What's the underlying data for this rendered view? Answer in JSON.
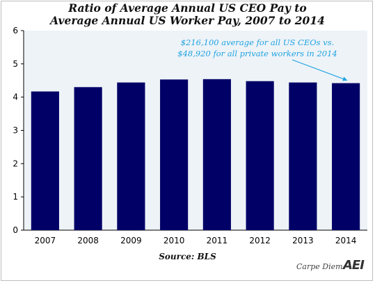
{
  "title_line1": "Ratio of Average Annual US CEO Pay to",
  "title_line2": "Average Annual US Worker Pay, 2007 to 2014",
  "annotation_line1": "$216,100 average for all US CEOs vs.",
  "annotation_line2": "$48,920 for all private workers in 2014",
  "source": "Source: BLS",
  "brand": "Carpe Diem",
  "logo": "AEI",
  "colors": {
    "bar": "#000066",
    "annotation": "#1fa3e0",
    "plot_background": "#eef3f8"
  },
  "chart_data": {
    "type": "bar",
    "title": "Ratio of Average Annual US CEO Pay to Average Annual US Worker Pay, 2007 to 2014",
    "categories": [
      "2007",
      "2008",
      "2009",
      "2010",
      "2011",
      "2012",
      "2013",
      "2014"
    ],
    "values": [
      4.17,
      4.3,
      4.44,
      4.53,
      4.54,
      4.48,
      4.44,
      4.42
    ],
    "yticks": [
      0,
      1,
      2,
      3,
      4,
      5,
      6
    ],
    "ylim": [
      0,
      6
    ],
    "xlabel": "",
    "ylabel": "",
    "grid": false
  }
}
